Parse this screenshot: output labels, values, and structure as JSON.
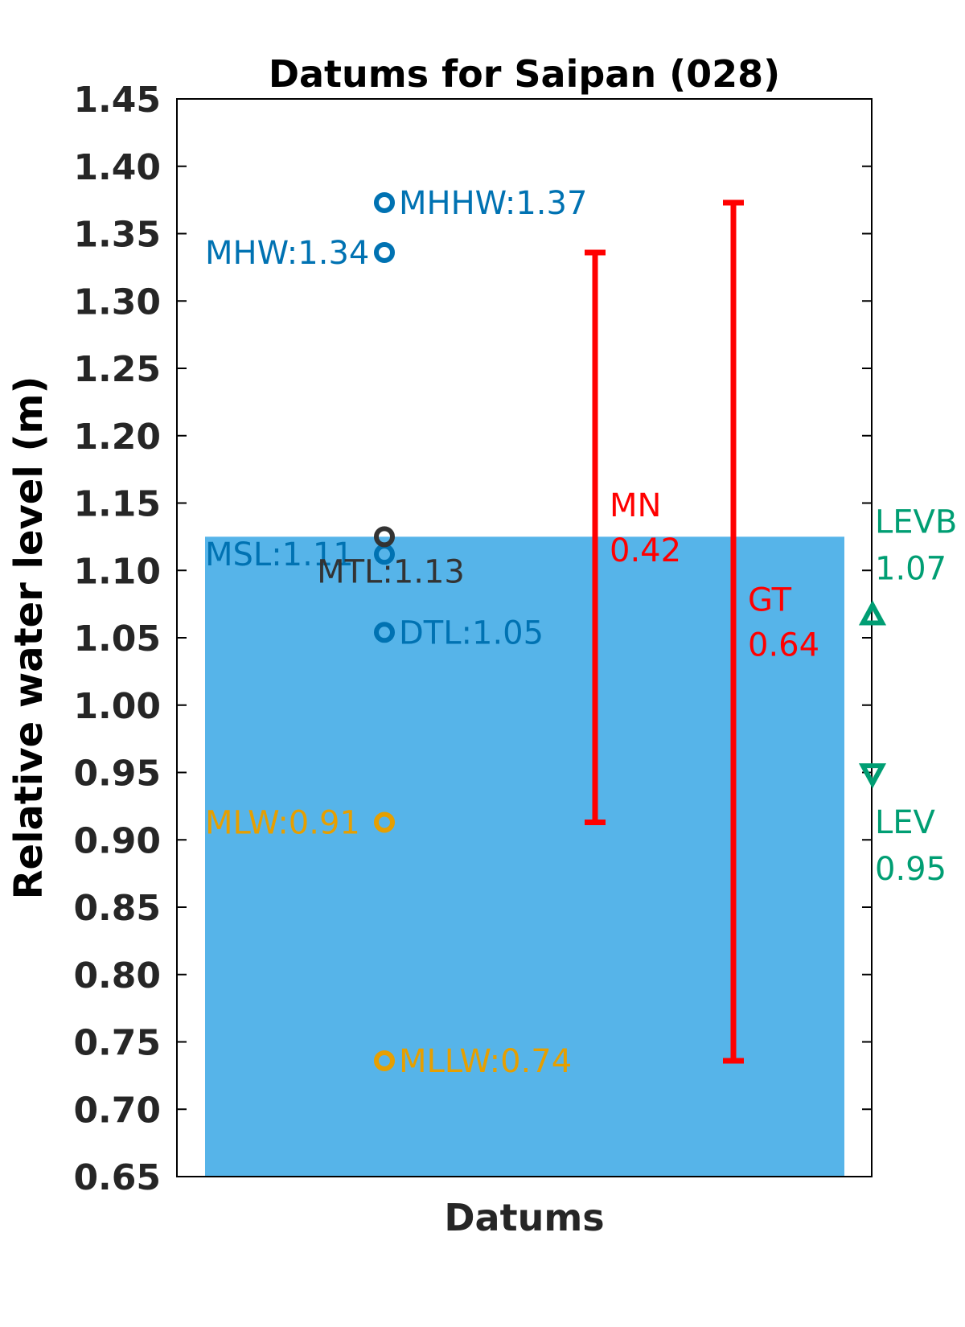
{
  "chart_data": {
    "type": "scatter",
    "title": "Datums for Saipan (028)",
    "xlabel": "Datums",
    "ylabel": "Relative water level (m)",
    "ylim": [
      0.65,
      1.45
    ],
    "yticks": [
      "0.65",
      "0.70",
      "0.75",
      "0.80",
      "0.85",
      "0.90",
      "0.95",
      "1.00",
      "1.05",
      "1.10",
      "1.15",
      "1.20",
      "1.25",
      "1.30",
      "1.35",
      "1.40",
      "1.45"
    ],
    "background_bar": {
      "top_value": 1.125,
      "color": "#56B4E9"
    },
    "points": [
      {
        "label": "MHHW:1.37",
        "value": 1.373,
        "color": "#0072B2",
        "label_side": "right"
      },
      {
        "label": "MHW:1.34",
        "value": 1.336,
        "color": "#0072B2",
        "label_side": "left"
      },
      {
        "label": "MSL:1.11",
        "value": 1.112,
        "color": "#0072B2",
        "label_side": "left"
      },
      {
        "label": "MTL:1.13",
        "value": 1.125,
        "color": "#333333",
        "label_side": "below"
      },
      {
        "label": "DTL:1.05",
        "value": 1.054,
        "color": "#0072B2",
        "label_side": "right"
      },
      {
        "label": "MLW:0.91",
        "value": 0.913,
        "color": "#E69F00",
        "label_side": "left"
      },
      {
        "label": "MLLW:0.74",
        "value": 0.736,
        "color": "#E69F00",
        "label_side": "right"
      }
    ],
    "ranges": [
      {
        "name": "MN",
        "value_text": "0.42",
        "low": 0.913,
        "high": 1.336,
        "color": "#FF0000"
      },
      {
        "name": "GT",
        "value_text": "0.64",
        "low": 0.736,
        "high": 1.373,
        "color": "#FF0000"
      }
    ],
    "markers": [
      {
        "name": "LEVB",
        "value_text": "1.07",
        "value": 1.067,
        "shape": "triangle-up",
        "color": "#009E73"
      },
      {
        "name": "LEV",
        "value_text": "0.95",
        "value": 0.949,
        "shape": "triangle-down",
        "color": "#009E73"
      }
    ]
  }
}
